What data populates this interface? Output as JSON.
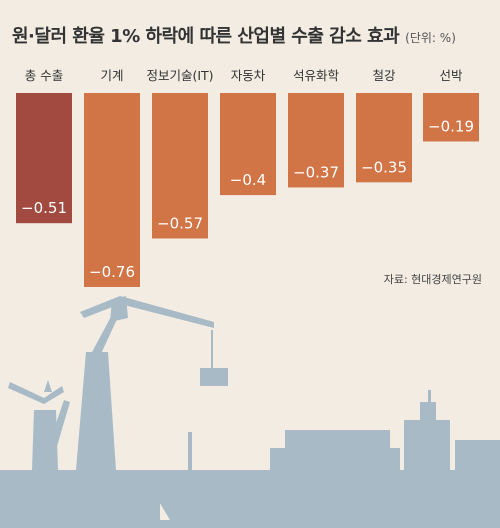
{
  "header": {
    "title": "원·달러 환율 1% 하락에 따른 산업별 수출 감소 효과",
    "unit": "(단위: %)"
  },
  "source": "자료: 현대경제연구원",
  "colors": {
    "total_bar": "#a24a40",
    "bar": "#d17546",
    "label_text": "#ffffff",
    "illustration": "#a9bac7",
    "background": "#f2ece3"
  },
  "chart_data": {
    "type": "bar",
    "orientation": "vertical-negative",
    "title": "원·달러 환율 1% 하락에 따른 산업별 수출 감소 효과",
    "unit": "%",
    "categories": [
      "총 수출",
      "기계",
      "정보기술(IT)",
      "자동차",
      "석유화학",
      "철강",
      "선박"
    ],
    "values": [
      -0.51,
      -0.76,
      -0.57,
      -0.4,
      -0.37,
      -0.35,
      -0.19
    ],
    "value_labels": [
      "−0.51",
      "−0.76",
      "−0.57",
      "−0.4",
      "−0.37",
      "−0.35",
      "−0.19"
    ],
    "ylim": [
      -0.76,
      0
    ],
    "grid": false,
    "legend": "none"
  }
}
